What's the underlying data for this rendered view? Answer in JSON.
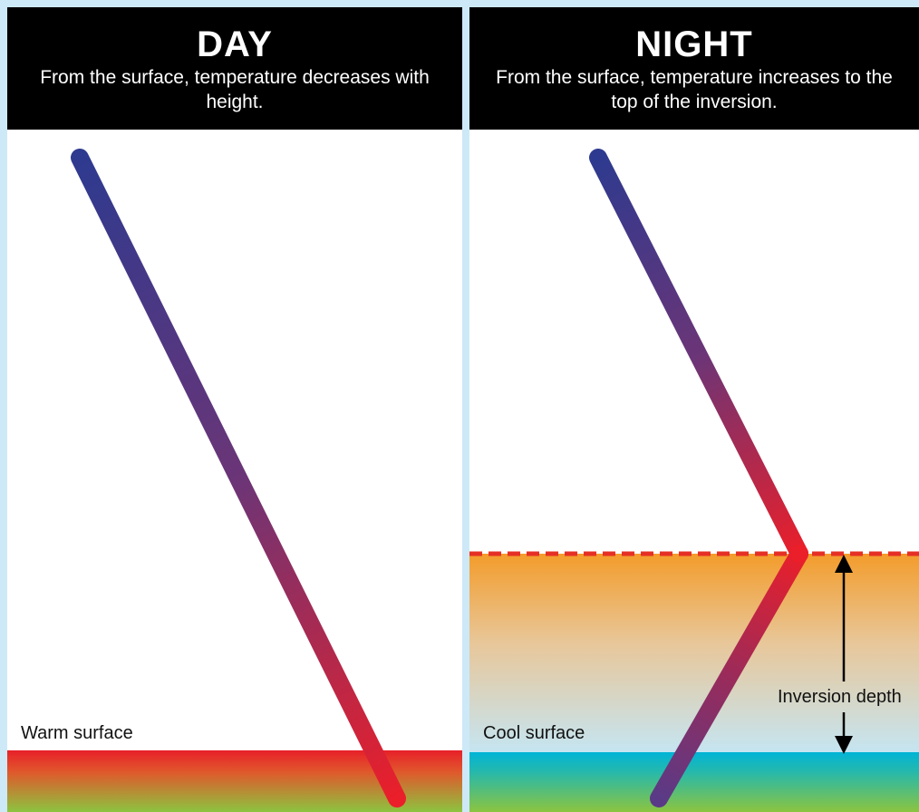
{
  "day": {
    "title": "DAY",
    "subtitle": "From the surface, temperature decreases with height.",
    "surface_label": "Warm surface"
  },
  "night": {
    "title": "NIGHT",
    "subtitle": "From the surface, temperature increases to the top of the inversion.",
    "surface_label": "Cool surface",
    "inversion_label": "Inversion depth"
  },
  "colors": {
    "header_bg": "#000000",
    "page_bg": "#cde9f7",
    "cool_line": "#2e3a8f",
    "warm_line": "#e8202a",
    "inversion_dashes": "#e53026",
    "inversion_orange": "#f39c2b",
    "surface_green": "#8cc43f",
    "surface_cyan": "#00b4d6",
    "surface_red": "#e8202a"
  }
}
